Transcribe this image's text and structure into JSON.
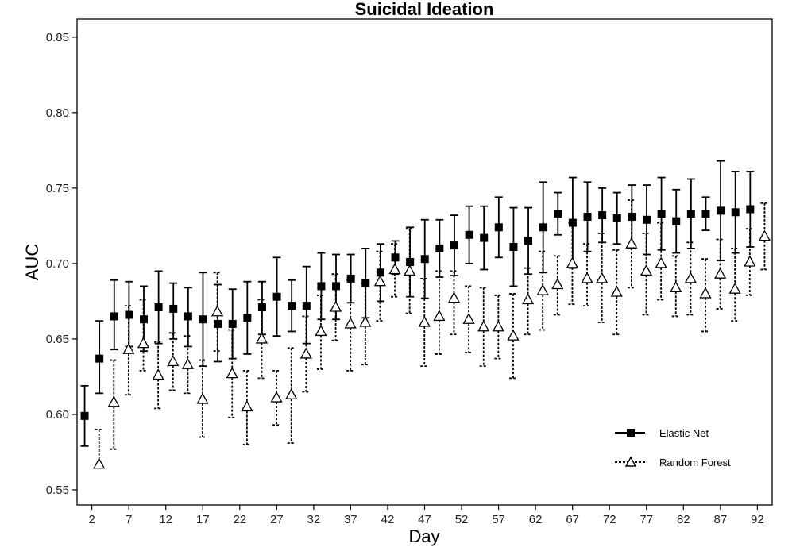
{
  "chart_data": {
    "type": "scatter",
    "title": "Suicidal Ideation",
    "xlabel": "Day",
    "ylabel": "AUC",
    "xlim": [
      0,
      94
    ],
    "ylim": [
      0.54,
      0.862
    ],
    "x_ticks": [
      2,
      7,
      12,
      17,
      22,
      27,
      32,
      37,
      42,
      47,
      52,
      57,
      62,
      67,
      72,
      77,
      82,
      87,
      92
    ],
    "y_ticks": [
      0.55,
      0.6,
      0.65,
      0.7,
      0.75,
      0.8,
      0.85
    ],
    "y_tick_labels": [
      "0.55",
      "0.60",
      "0.65",
      "0.70",
      "0.75",
      "0.80",
      "0.85"
    ],
    "grid": false,
    "legend_position": "bottom-right",
    "series": [
      {
        "name": "Elastic Net",
        "marker": "filled-square",
        "line": "solid",
        "color": "#000000",
        "x": [
          2,
          4,
          6,
          8,
          10,
          12,
          14,
          16,
          18,
          20,
          22,
          24,
          26,
          28,
          30,
          32,
          34,
          36,
          38,
          40,
          42,
          44,
          46,
          48,
          50,
          52,
          54,
          56,
          58,
          60,
          62,
          64,
          66,
          68,
          70,
          72,
          74,
          76,
          78,
          80,
          82,
          84,
          86,
          88,
          90,
          92
        ],
        "y": [
          0.599,
          0.637,
          0.665,
          0.666,
          0.663,
          0.671,
          0.67,
          0.665,
          0.663,
          0.66,
          0.66,
          0.664,
          0.671,
          0.678,
          0.672,
          0.672,
          0.685,
          0.685,
          0.69,
          0.687,
          0.694,
          0.704,
          0.701,
          0.703,
          0.71,
          0.712,
          0.719,
          0.717,
          0.724,
          0.711,
          0.715,
          0.724,
          0.733,
          0.727,
          0.731,
          0.732,
          0.73,
          0.731,
          0.729,
          0.733,
          0.728,
          0.733,
          0.733,
          0.735,
          0.734,
          0.736
        ],
        "upper": [
          0.619,
          0.662,
          0.689,
          0.688,
          0.685,
          0.695,
          0.687,
          0.684,
          0.694,
          0.686,
          0.683,
          0.688,
          0.688,
          0.704,
          0.689,
          0.698,
          0.707,
          0.706,
          0.706,
          0.71,
          0.713,
          0.715,
          0.724,
          0.729,
          0.729,
          0.732,
          0.738,
          0.738,
          0.744,
          0.737,
          0.737,
          0.754,
          0.747,
          0.757,
          0.754,
          0.75,
          0.747,
          0.752,
          0.752,
          0.757,
          0.749,
          0.756,
          0.744,
          0.768,
          0.761,
          0.761
        ],
        "lower": [
          0.579,
          0.614,
          0.643,
          0.645,
          0.642,
          0.647,
          0.65,
          0.645,
          0.632,
          0.635,
          0.637,
          0.64,
          0.653,
          0.652,
          0.655,
          0.647,
          0.663,
          0.663,
          0.674,
          0.664,
          0.675,
          0.693,
          0.678,
          0.677,
          0.691,
          0.692,
          0.7,
          0.696,
          0.704,
          0.685,
          0.693,
          0.694,
          0.719,
          0.697,
          0.708,
          0.714,
          0.713,
          0.71,
          0.706,
          0.709,
          0.707,
          0.71,
          0.722,
          0.702,
          0.707,
          0.711
        ]
      },
      {
        "name": "Random Forest",
        "marker": "open-triangle",
        "line": "dotted",
        "color": "#000000",
        "x": [
          2,
          4,
          6,
          8,
          10,
          12,
          14,
          16,
          18,
          20,
          22,
          24,
          26,
          28,
          30,
          32,
          34,
          36,
          38,
          40,
          42,
          44,
          46,
          48,
          50,
          52,
          54,
          56,
          58,
          60,
          62,
          64,
          66,
          68,
          70,
          72,
          74,
          76,
          78,
          80,
          82,
          84,
          86,
          88,
          90,
          92
        ],
        "y": [
          0.567,
          0.608,
          0.643,
          0.647,
          0.626,
          0.635,
          0.633,
          0.61,
          0.668,
          0.627,
          0.605,
          0.65,
          0.611,
          0.613,
          0.64,
          0.655,
          0.671,
          0.66,
          0.661,
          0.688,
          0.696,
          0.695,
          0.661,
          0.665,
          0.677,
          0.663,
          0.658,
          0.658,
          0.652,
          0.676,
          0.682,
          0.686,
          0.7,
          0.69,
          0.69,
          0.681,
          0.713,
          0.695,
          0.7,
          0.684,
          0.69,
          0.68,
          0.693,
          0.683,
          0.701,
          0.718
        ],
        "upper": [
          0.59,
          0.636,
          0.672,
          0.676,
          0.648,
          0.654,
          0.652,
          0.636,
          0.694,
          0.656,
          0.629,
          0.676,
          0.629,
          0.644,
          0.665,
          0.679,
          0.693,
          0.689,
          0.687,
          0.708,
          0.713,
          0.723,
          0.69,
          0.695,
          0.695,
          0.685,
          0.684,
          0.679,
          0.68,
          0.697,
          0.708,
          0.705,
          0.727,
          0.713,
          0.72,
          0.709,
          0.742,
          0.72,
          0.727,
          0.705,
          0.714,
          0.703,
          0.716,
          0.71,
          0.723,
          0.74
        ],
        "lower": [
          0.567,
          0.577,
          0.613,
          0.629,
          0.604,
          0.616,
          0.614,
          0.585,
          0.642,
          0.598,
          0.58,
          0.624,
          0.593,
          0.581,
          0.615,
          0.63,
          0.649,
          0.629,
          0.633,
          0.662,
          0.678,
          0.667,
          0.632,
          0.64,
          0.653,
          0.641,
          0.632,
          0.637,
          0.624,
          0.653,
          0.656,
          0.666,
          0.673,
          0.672,
          0.661,
          0.653,
          0.684,
          0.666,
          0.676,
          0.665,
          0.666,
          0.655,
          0.67,
          0.662,
          0.679,
          0.696
        ]
      }
    ]
  }
}
